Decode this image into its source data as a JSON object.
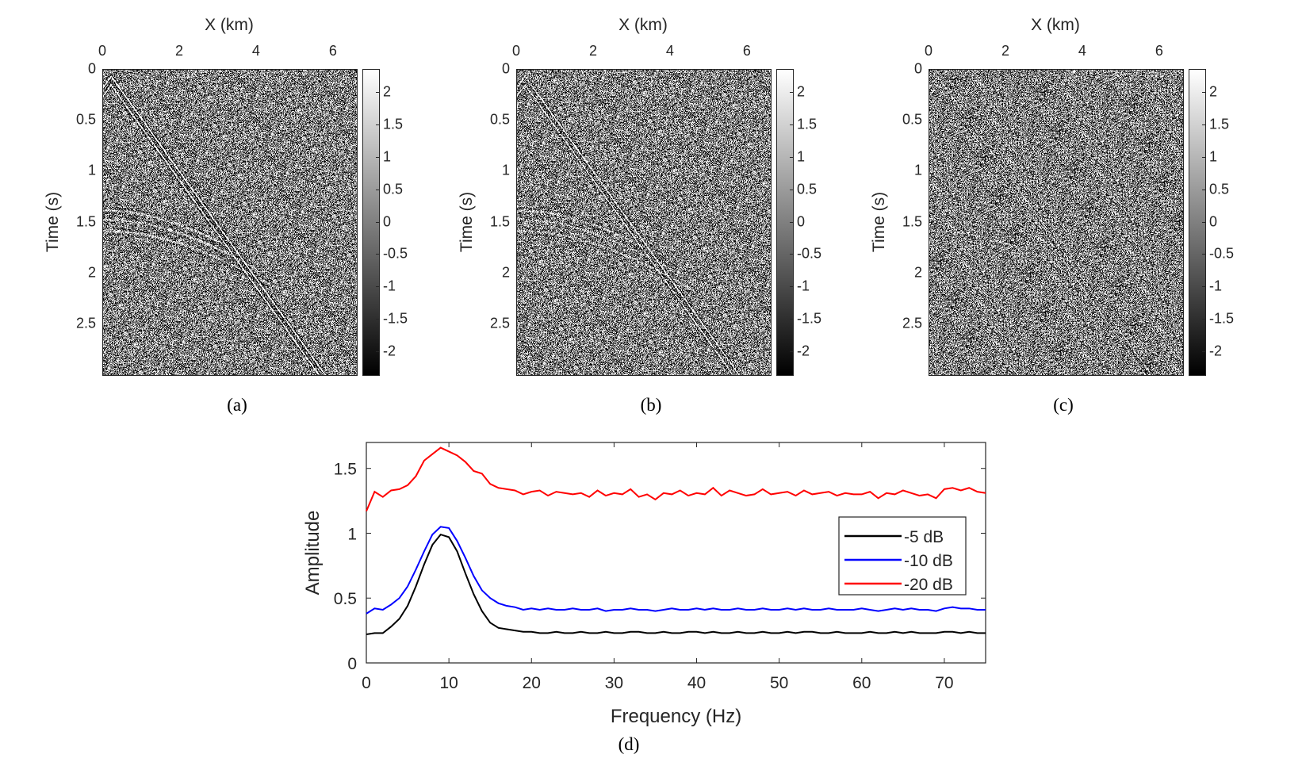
{
  "panels": [
    {
      "id": "a",
      "caption": "(a)",
      "xlabel": "X (km)",
      "ylabel": "Time (s)",
      "x_ticks": [
        "0",
        "2",
        "4",
        "6"
      ],
      "y_ticks": [
        "0",
        "0.5",
        "1",
        "1.5",
        "2",
        "2.5"
      ],
      "xlim": [
        0,
        6.6
      ],
      "ylim": [
        0,
        3
      ],
      "colorbar_ticks": [
        "2",
        "1.5",
        "1",
        "0.5",
        "0",
        "-0.5",
        "-1",
        "-1.5",
        "-2"
      ],
      "colorbar_range": [
        -2.35,
        2.35
      ],
      "colormap": "gray"
    },
    {
      "id": "b",
      "caption": "(b)",
      "xlabel": "X (km)",
      "ylabel": "Time (s)",
      "x_ticks": [
        "0",
        "2",
        "4",
        "6"
      ],
      "y_ticks": [
        "0",
        "0.5",
        "1",
        "1.5",
        "2",
        "2.5"
      ],
      "xlim": [
        0,
        6.6
      ],
      "ylim": [
        0,
        3
      ],
      "colorbar_ticks": [
        "2",
        "1.5",
        "1",
        "0.5",
        "0",
        "-0.5",
        "-1",
        "-1.5",
        "-2"
      ],
      "colorbar_range": [
        -2.35,
        2.35
      ],
      "colormap": "gray"
    },
    {
      "id": "c",
      "caption": "(c)",
      "xlabel": "X (km)",
      "ylabel": "Time (s)",
      "x_ticks": [
        "0",
        "2",
        "4",
        "6"
      ],
      "y_ticks": [
        "0",
        "0.5",
        "1",
        "1.5",
        "2",
        "2.5"
      ],
      "xlim": [
        0,
        6.6
      ],
      "ylim": [
        0,
        3
      ],
      "colorbar_ticks": [
        "2",
        "1.5",
        "1",
        "0.5",
        "0",
        "-0.5",
        "-1",
        "-1.5",
        "-2"
      ],
      "colorbar_range": [
        -2.35,
        2.35
      ],
      "colormap": "gray"
    }
  ],
  "chart_data": {
    "type": "line",
    "caption": "(d)",
    "xlabel": "Frequency (Hz)",
    "ylabel": "Amplitude",
    "xlim": [
      0,
      75
    ],
    "ylim": [
      0,
      1.7
    ],
    "x_ticks": [
      "0",
      "10",
      "20",
      "30",
      "40",
      "50",
      "60",
      "70"
    ],
    "y_ticks": [
      "0",
      "0.5",
      "1",
      "1.5"
    ],
    "grid": false,
    "legend_position": "right",
    "x": [
      0,
      1,
      2,
      3,
      4,
      5,
      6,
      7,
      8,
      9,
      10,
      11,
      12,
      13,
      14,
      15,
      16,
      17,
      18,
      19,
      20,
      21,
      22,
      23,
      24,
      25,
      26,
      27,
      28,
      29,
      30,
      31,
      32,
      33,
      34,
      35,
      36,
      37,
      38,
      39,
      40,
      41,
      42,
      43,
      44,
      45,
      46,
      47,
      48,
      49,
      50,
      51,
      52,
      53,
      54,
      55,
      56,
      57,
      58,
      59,
      60,
      61,
      62,
      63,
      64,
      65,
      66,
      67,
      68,
      69,
      70,
      71,
      72,
      73,
      74,
      75
    ],
    "series": [
      {
        "name": "-5 dB",
        "color": "#000000",
        "values": [
          0.22,
          0.23,
          0.23,
          0.28,
          0.34,
          0.44,
          0.59,
          0.76,
          0.91,
          0.99,
          0.97,
          0.86,
          0.69,
          0.53,
          0.4,
          0.31,
          0.27,
          0.26,
          0.25,
          0.24,
          0.24,
          0.23,
          0.23,
          0.24,
          0.23,
          0.23,
          0.24,
          0.23,
          0.23,
          0.24,
          0.23,
          0.23,
          0.24,
          0.24,
          0.23,
          0.23,
          0.24,
          0.23,
          0.23,
          0.24,
          0.24,
          0.23,
          0.24,
          0.23,
          0.23,
          0.24,
          0.23,
          0.23,
          0.24,
          0.23,
          0.23,
          0.24,
          0.23,
          0.24,
          0.24,
          0.23,
          0.23,
          0.24,
          0.23,
          0.23,
          0.23,
          0.24,
          0.23,
          0.23,
          0.24,
          0.23,
          0.24,
          0.23,
          0.23,
          0.23,
          0.24,
          0.24,
          0.23,
          0.24,
          0.23,
          0.23
        ]
      },
      {
        "name": "-10 dB",
        "color": "#0000ff",
        "values": [
          0.38,
          0.42,
          0.41,
          0.45,
          0.5,
          0.59,
          0.72,
          0.86,
          0.99,
          1.05,
          1.04,
          0.94,
          0.81,
          0.67,
          0.56,
          0.5,
          0.46,
          0.44,
          0.43,
          0.41,
          0.42,
          0.41,
          0.42,
          0.41,
          0.41,
          0.42,
          0.41,
          0.41,
          0.42,
          0.4,
          0.41,
          0.41,
          0.42,
          0.41,
          0.41,
          0.4,
          0.41,
          0.42,
          0.41,
          0.41,
          0.42,
          0.41,
          0.42,
          0.41,
          0.41,
          0.42,
          0.41,
          0.41,
          0.42,
          0.41,
          0.41,
          0.42,
          0.41,
          0.42,
          0.41,
          0.41,
          0.42,
          0.41,
          0.41,
          0.41,
          0.42,
          0.41,
          0.4,
          0.41,
          0.42,
          0.41,
          0.42,
          0.41,
          0.41,
          0.4,
          0.42,
          0.43,
          0.42,
          0.42,
          0.41,
          0.41
        ]
      },
      {
        "name": "-20 dB",
        "color": "#ff0000",
        "values": [
          1.17,
          1.32,
          1.28,
          1.33,
          1.34,
          1.37,
          1.44,
          1.56,
          1.61,
          1.66,
          1.63,
          1.6,
          1.55,
          1.48,
          1.46,
          1.38,
          1.35,
          1.34,
          1.33,
          1.3,
          1.32,
          1.33,
          1.29,
          1.32,
          1.31,
          1.3,
          1.31,
          1.28,
          1.33,
          1.29,
          1.31,
          1.3,
          1.34,
          1.28,
          1.3,
          1.26,
          1.31,
          1.3,
          1.33,
          1.29,
          1.31,
          1.3,
          1.35,
          1.29,
          1.33,
          1.31,
          1.29,
          1.3,
          1.34,
          1.3,
          1.31,
          1.32,
          1.29,
          1.33,
          1.3,
          1.31,
          1.32,
          1.29,
          1.31,
          1.3,
          1.3,
          1.32,
          1.27,
          1.31,
          1.3,
          1.33,
          1.31,
          1.29,
          1.3,
          1.27,
          1.34,
          1.35,
          1.33,
          1.35,
          1.32,
          1.31
        ]
      }
    ]
  }
}
